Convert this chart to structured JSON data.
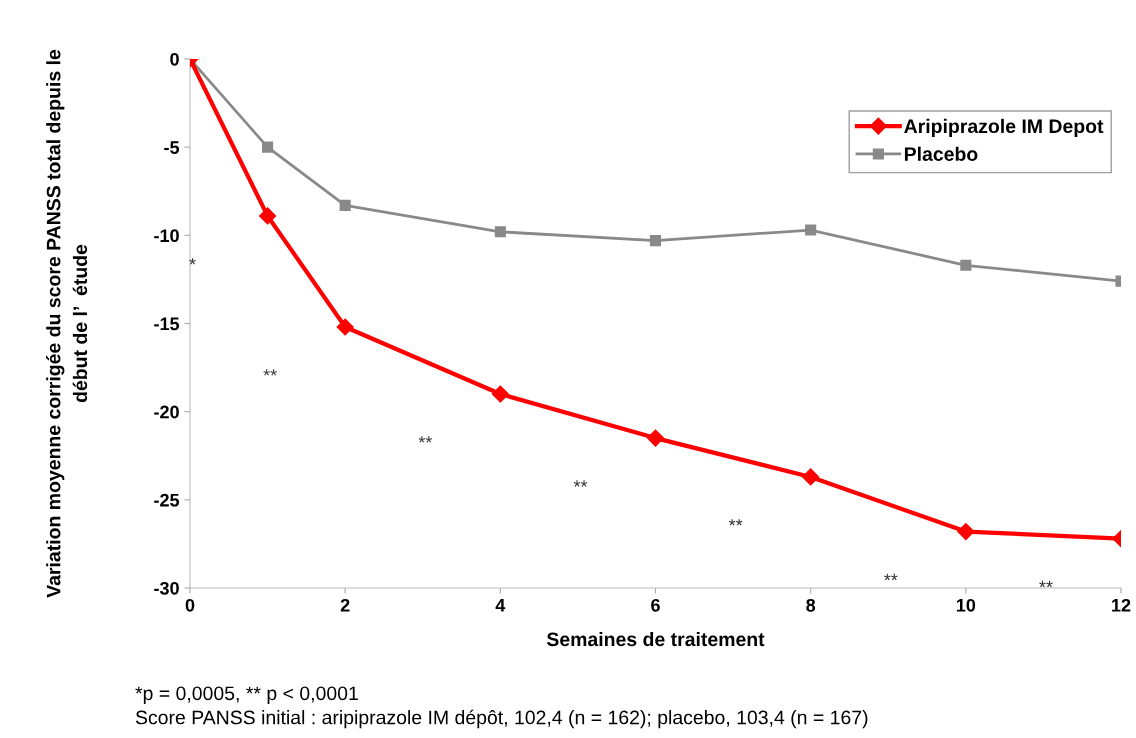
{
  "chart_data": {
    "type": "line",
    "xlabel": "Semaines de traitement",
    "ylabel": "Variation moyenne corrigée du score PANSS total depuis le\ndébut de l’  étude",
    "x": [
      0,
      1,
      2,
      4,
      6,
      8,
      10,
      12
    ],
    "series": [
      {
        "name": "Aripiprazole IM Depot",
        "color": "#ff0000",
        "marker": "diamond",
        "values": [
          0,
          -8.9,
          -15.2,
          -19.0,
          -21.5,
          -23.7,
          -26.8,
          -27.2
        ]
      },
      {
        "name": "Placebo",
        "color": "#898989",
        "marker": "square",
        "values": [
          0,
          -5.0,
          -8.3,
          -9.8,
          -10.3,
          -9.7,
          -11.7,
          -12.6
        ]
      }
    ],
    "xlim": [
      0,
      12
    ],
    "xticks": [
      0,
      2,
      4,
      6,
      8,
      10,
      12
    ],
    "ylim": [
      -30,
      0
    ],
    "yticks": [
      0,
      -5,
      -10,
      -15,
      -20,
      -25,
      -30
    ],
    "grid": false,
    "legend": "top right",
    "annotations": [
      "*",
      "**",
      "**",
      "**",
      "**",
      "**",
      "**",
      "*p = 0,0005, ** p < 0,0001",
      "Score PANSS initial : aripiprazole IM dépôt, 102,4 (n = 162); placebo, 103,4 (n = 167)"
    ]
  }
}
